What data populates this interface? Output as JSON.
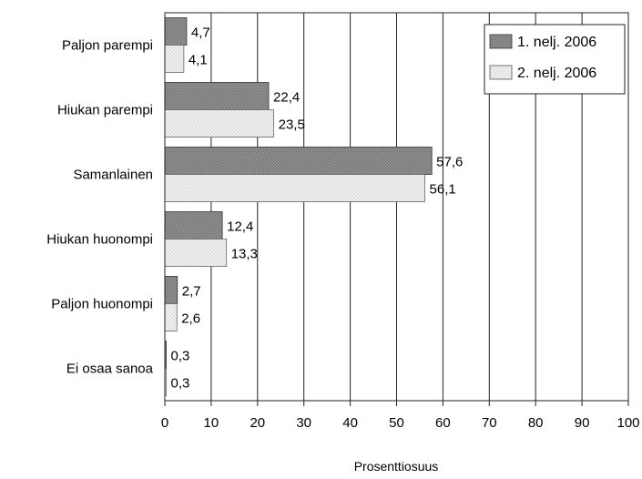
{
  "chart_data": {
    "type": "bar",
    "orientation": "horizontal",
    "categories": [
      "Paljon parempi",
      "Hiukan parempi",
      "Samanlainen",
      "Hiukan huonompi",
      "Paljon huonompi",
      "Ei osaa sanoa"
    ],
    "series": [
      {
        "name": "1. nelj. 2006",
        "values": [
          4.7,
          22.4,
          57.6,
          12.4,
          2.7,
          0.3
        ],
        "labels": [
          "4,7",
          "22,4",
          "57,6",
          "12,4",
          "2,7",
          "0,3"
        ],
        "color": "#8a8a8a"
      },
      {
        "name": "2. nelj. 2006",
        "values": [
          4.1,
          23.5,
          56.1,
          13.3,
          2.6,
          0.3
        ],
        "labels": [
          "4,1",
          "23,5",
          "56,1",
          "13,3",
          "2,6",
          "0,3"
        ],
        "color": "#e6e6e6"
      }
    ],
    "xlabel": "Prosenttiosuus",
    "xlim": [
      0,
      100
    ],
    "ticks": [
      0,
      10,
      20,
      30,
      40,
      50,
      60,
      70,
      80,
      90,
      100
    ],
    "grid": "vertical",
    "legend_position": "top-right"
  }
}
